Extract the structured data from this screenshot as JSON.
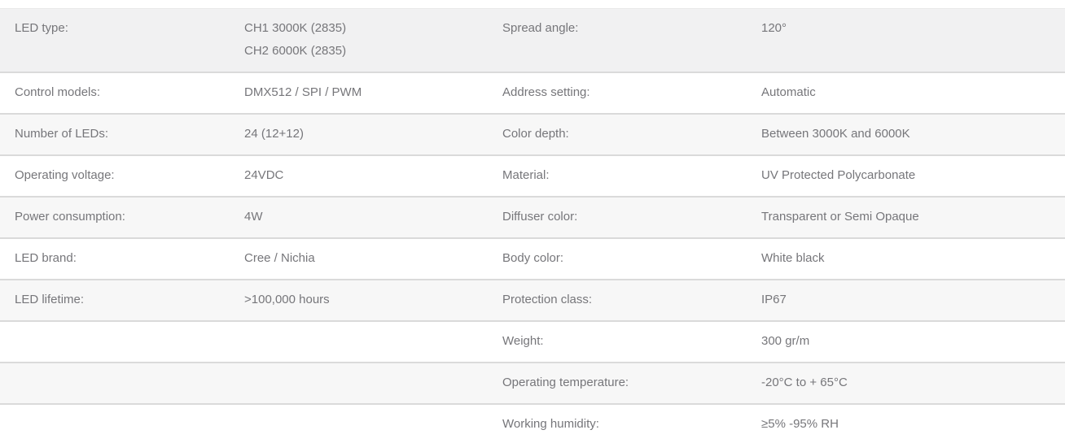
{
  "table": {
    "rows": [
      {
        "left_label": "LED type:",
        "left_value": [
          "CH1 3000K (2835)",
          "CH2 6000K (2835)"
        ],
        "right_label": "Spread angle:",
        "right_value": "120°"
      },
      {
        "left_label": "Control models:",
        "left_value": "DMX512 / SPI / PWM",
        "right_label": "Address setting:",
        "right_value": "Automatic"
      },
      {
        "left_label": "Number of LEDs:",
        "left_value": "24 (12+12)",
        "right_label": "Color depth:",
        "right_value": "Between 3000K and 6000K"
      },
      {
        "left_label": "Operating voltage:",
        "left_value": "24VDC",
        "right_label": "Material:",
        "right_value": "UV Protected Polycarbonate"
      },
      {
        "left_label": "Power consumption:",
        "left_value": "4W",
        "right_label": "Diffuser color:",
        "right_value": "Transparent or Semi Opaque"
      },
      {
        "left_label": "LED brand:",
        "left_value": "Cree / Nichia",
        "right_label": "Body color:",
        "right_value": "White black"
      },
      {
        "left_label": "LED lifetime:",
        "left_value": ">100,000 hours",
        "right_label": "Protection class:",
        "right_value": "IP67"
      },
      {
        "left_label": "",
        "left_value": "",
        "right_label": "Weight:",
        "right_value": "300 gr/m"
      },
      {
        "left_label": "",
        "left_value": "",
        "right_label": "Operating temperature:",
        "right_value": "-20°C to + 65°C"
      },
      {
        "left_label": "",
        "left_value": "",
        "right_label": "Working humidity:",
        "right_value": "≥5% -95% RH"
      }
    ]
  },
  "colors": {
    "row_first_bg": "#f1f1f2",
    "row_alt_bg": "#f7f7f7",
    "row_plain_bg": "#ffffff",
    "border": "#dadada",
    "text": "#76767a"
  }
}
